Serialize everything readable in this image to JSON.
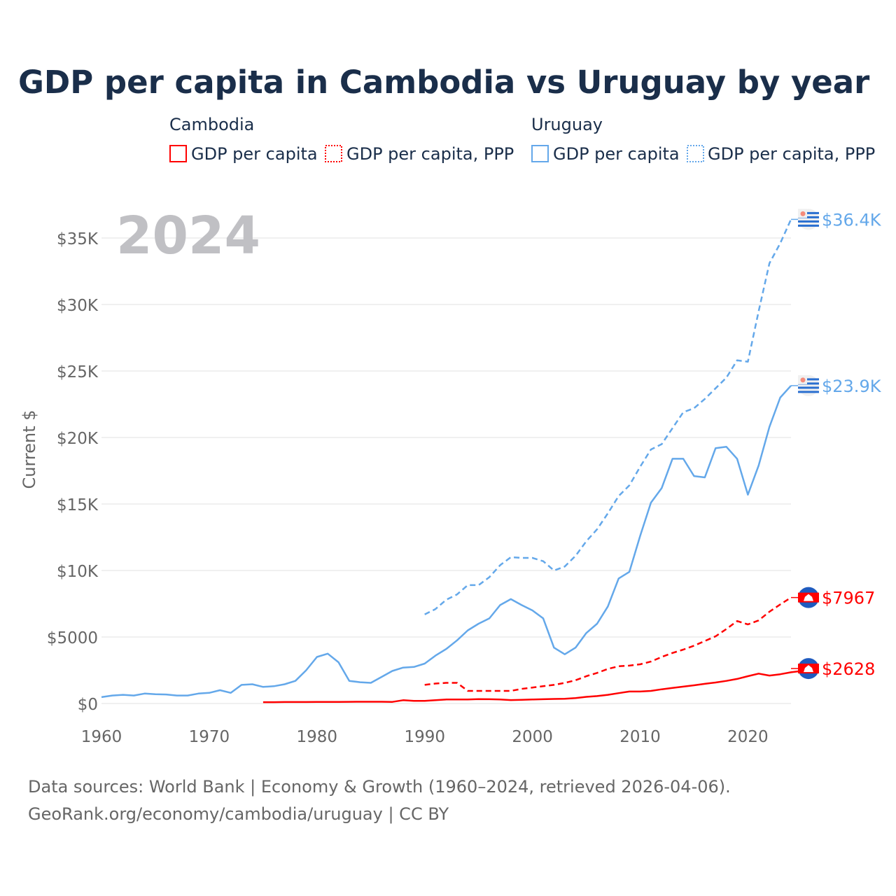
{
  "chart_data": {
    "type": "line",
    "title": "GDP per capita in Cambodia vs Uruguay by year",
    "ylabel": "Current $",
    "xlabel": "",
    "year_watermark": "2024",
    "xlim": [
      1960,
      2024
    ],
    "ylim": [
      0,
      35000
    ],
    "x_ticks": [
      1960,
      1970,
      1980,
      1990,
      2000,
      2010,
      2020
    ],
    "x_tick_labels": [
      "1960",
      "1970",
      "1980",
      "1990",
      "2000",
      "2010",
      "2020"
    ],
    "y_ticks": [
      0,
      5000,
      10000,
      15000,
      20000,
      25000,
      30000,
      35000
    ],
    "y_tick_labels": [
      "$0",
      "$5000",
      "$10K",
      "$15K",
      "$20K",
      "$25K",
      "$30K",
      "$35K"
    ],
    "grid": true,
    "legend": {
      "position": "top",
      "groups": [
        {
          "title": "Cambodia",
          "items": [
            "GDP per capita",
            "GDP per capita, PPP"
          ]
        },
        {
          "title": "Uruguay",
          "items": [
            "GDP per capita",
            "GDP per capita, PPP"
          ]
        }
      ]
    },
    "series": [
      {
        "name": "Uruguay GDP per capita",
        "country": "Uruguay",
        "color": "#64a8ea",
        "dashed": false,
        "start": 1960,
        "end_label": "$23.9K",
        "values": [
          480,
          600,
          650,
          600,
          750,
          700,
          680,
          600,
          600,
          750,
          800,
          1000,
          800,
          1400,
          1450,
          1250,
          1300,
          1450,
          1700,
          2500,
          3500,
          3750,
          3100,
          1700,
          1600,
          1550,
          2000,
          2450,
          2700,
          2750,
          3000,
          3600,
          4100,
          4750,
          5500,
          6000,
          6400,
          7400,
          7850,
          7400,
          7000,
          6400,
          4200,
          3700,
          4200,
          5300,
          6000,
          7300,
          9400,
          9900,
          12600,
          15100,
          16200,
          18400,
          18400,
          17100,
          17000,
          19200,
          19300,
          18400,
          15700,
          17900,
          20800,
          23000,
          23900
        ]
      },
      {
        "name": "Uruguay GDP per capita, PPP",
        "country": "Uruguay",
        "color": "#64a8ea",
        "dashed": true,
        "start": 1990,
        "end_label": "$36.4K",
        "values": [
          6700,
          7100,
          7800,
          8200,
          8900,
          8900,
          9500,
          10400,
          11000,
          10950,
          10950,
          10700,
          10000,
          10300,
          11100,
          12200,
          13100,
          14300,
          15600,
          16400,
          17800,
          19100,
          19500,
          20700,
          21900,
          22200,
          22900,
          23700,
          24500,
          25800,
          25700,
          29500,
          33100,
          34600,
          36400
        ]
      },
      {
        "name": "Cambodia GDP per capita",
        "country": "Cambodia",
        "color": "#ff0000",
        "dashed": false,
        "start": 1975,
        "end_label": "$2628",
        "values": [
          100,
          100,
          110,
          110,
          110,
          115,
          120,
          120,
          125,
          130,
          130,
          130,
          120,
          250,
          200,
          200,
          250,
          300,
          300,
          300,
          330,
          320,
          300,
          260,
          280,
          300,
          320,
          340,
          360,
          410,
          500,
          560,
          650,
          780,
          900,
          900,
          950,
          1070,
          1170,
          1270,
          1370,
          1480,
          1580,
          1700,
          1850,
          2050,
          2250,
          2100,
          2200,
          2350,
          2450,
          2628
        ]
      },
      {
        "name": "Cambodia GDP per capita, PPP",
        "country": "Cambodia",
        "color": "#ff0000",
        "dashed": true,
        "start": 1990,
        "end_label": "$7967",
        "values": [
          1400,
          1500,
          1550,
          1550,
          950,
          950,
          950,
          950,
          950,
          1100,
          1200,
          1300,
          1400,
          1550,
          1750,
          2050,
          2300,
          2600,
          2800,
          2850,
          2950,
          3150,
          3500,
          3800,
          4050,
          4350,
          4700,
          5050,
          5600,
          6200,
          5950,
          6250,
          6900,
          7450,
          7967
        ]
      }
    ]
  },
  "colors": {
    "title": "#1a2e4a",
    "uruguay": "#64a8ea",
    "cambodia": "#ff0000",
    "watermark": "#c0c0c4",
    "axis_text": "#666666"
  },
  "footer": {
    "line1": "Data sources: World Bank | Economy & Growth (1960–2024, retrieved 2026-04-06).",
    "line2": "GeoRank.org/economy/cambodia/uruguay | CC BY"
  }
}
